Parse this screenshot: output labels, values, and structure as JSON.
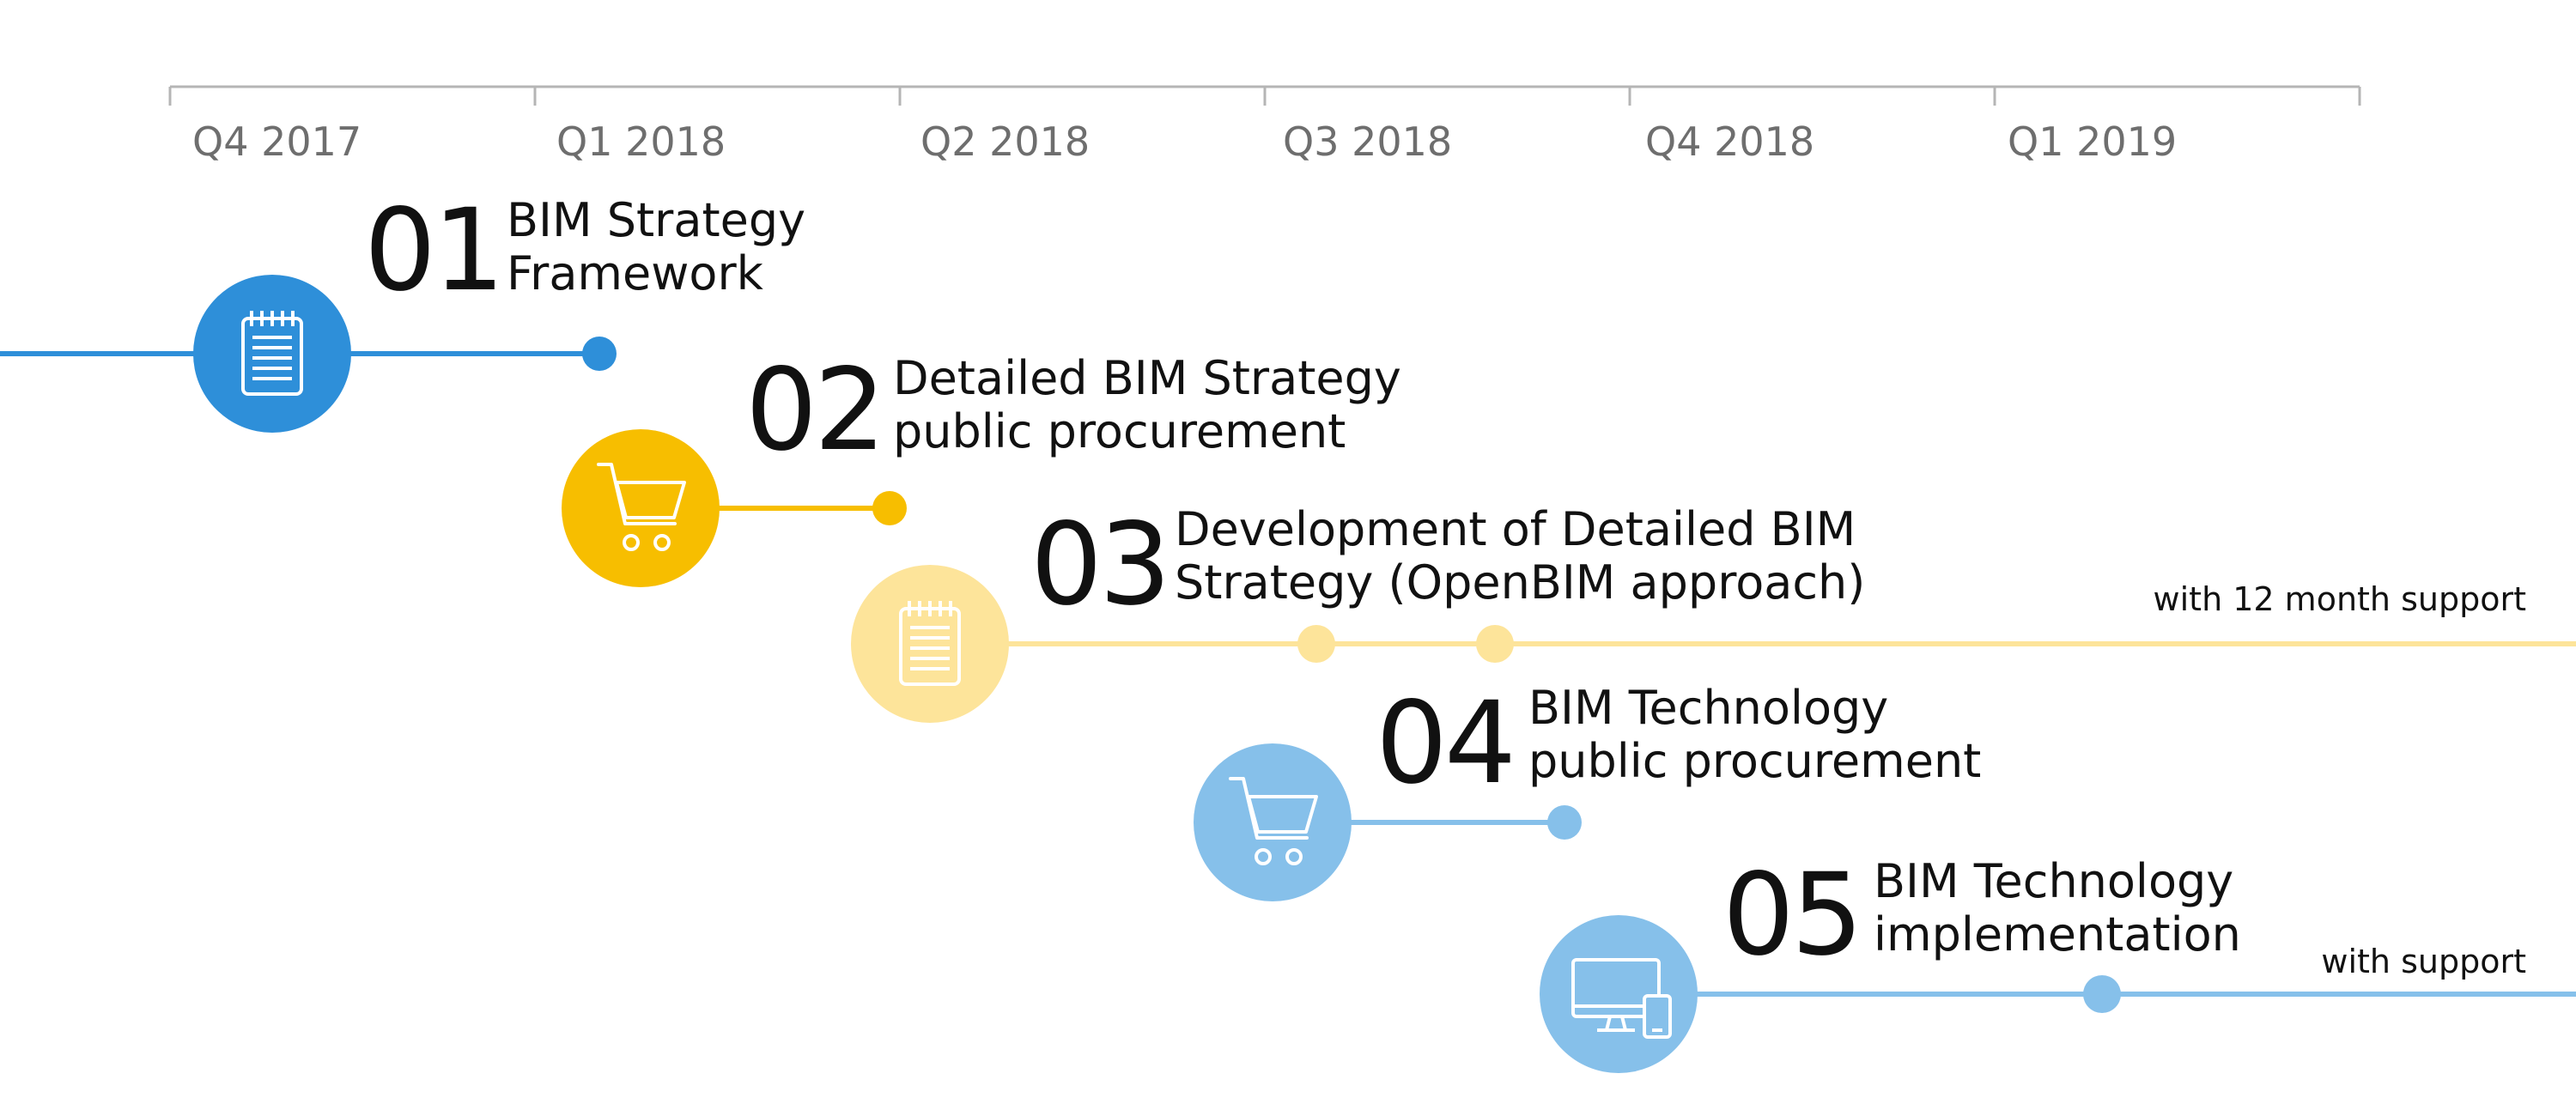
{
  "timeline": {
    "quarters": [
      "Q4 2017",
      "Q1 2018",
      "Q2 2018",
      "Q3 2018",
      "Q4 2018",
      "Q1 2019"
    ]
  },
  "steps": [
    {
      "number": "01",
      "line1": "BIM Strategy",
      "line2": "Framework",
      "icon": "notepad-icon",
      "color": "#2e8fd9"
    },
    {
      "number": "02",
      "line1": "Detailed BIM Strategy",
      "line2": "public procurement",
      "icon": "cart-icon",
      "color": "#f7be00"
    },
    {
      "number": "03",
      "line1": "Development of Detailed BIM",
      "line2": "Strategy (OpenBIM approach)",
      "icon": "notepad-icon",
      "color": "#fde49a",
      "note": "with 12 month support"
    },
    {
      "number": "04",
      "line1": "BIM Technology",
      "line2": "public procurement",
      "icon": "cart-icon",
      "color": "#86c0ea"
    },
    {
      "number": "05",
      "line1": "BIM Technology",
      "line2": "implementation",
      "icon": "devices-icon",
      "color": "#86c0ea",
      "note": "with support"
    }
  ]
}
